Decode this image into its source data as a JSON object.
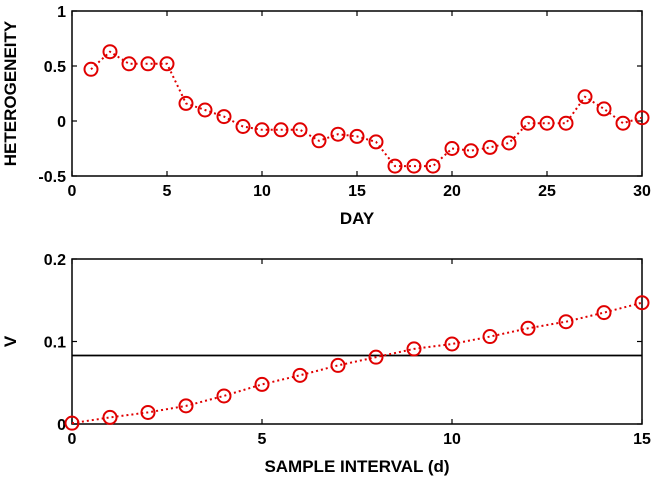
{
  "chart_data": [
    {
      "type": "line",
      "xlabel": "DAY",
      "ylabel": "HETEROGENEITY",
      "xlim": [
        0,
        30
      ],
      "ylim": [
        -0.5,
        1
      ],
      "xticks": [
        0,
        5,
        10,
        15,
        20,
        25,
        30
      ],
      "xtick_labels": [
        "0",
        "5",
        "10",
        "15",
        "20",
        "25",
        "30"
      ],
      "yticks": [
        -0.5,
        0,
        0.5,
        1
      ],
      "ytick_labels": [
        "-0.5",
        "0",
        "0.5",
        "1"
      ],
      "grid": false,
      "series": [
        {
          "color": "#e00000",
          "marker": "circle",
          "line_style": "dotted",
          "x": [
            1,
            2,
            3,
            4,
            5,
            6,
            7,
            8,
            9,
            10,
            11,
            12,
            13,
            14,
            15,
            16,
            17,
            18,
            19,
            20,
            21,
            22,
            23,
            24,
            25,
            26,
            27,
            28,
            29,
            30
          ],
          "values": [
            0.47,
            0.63,
            0.52,
            0.52,
            0.52,
            0.16,
            0.1,
            0.04,
            -0.05,
            -0.08,
            -0.08,
            -0.08,
            -0.18,
            -0.12,
            -0.14,
            -0.19,
            -0.41,
            -0.41,
            -0.41,
            -0.25,
            -0.27,
            -0.24,
            -0.2,
            -0.02,
            -0.02,
            -0.02,
            0.22,
            0.11,
            -0.02,
            0.03
          ]
        }
      ]
    },
    {
      "type": "line",
      "xlabel": "SAMPLE INTERVAL (d)",
      "ylabel": "V",
      "xlim": [
        0,
        15
      ],
      "ylim": [
        0,
        0.2
      ],
      "xticks": [
        0,
        5,
        10,
        15
      ],
      "xtick_labels": [
        "0",
        "5",
        "10",
        "15"
      ],
      "yticks": [
        0,
        0.1,
        0.2
      ],
      "ytick_labels": [
        "0",
        "0.1",
        "0.2"
      ],
      "grid": false,
      "series": [
        {
          "color": "#e00000",
          "marker": "circle",
          "line_style": "dotted",
          "x": [
            0,
            1,
            2,
            3,
            4,
            5,
            6,
            7,
            8,
            9,
            10,
            11,
            12,
            13,
            14,
            15
          ],
          "values": [
            0.001,
            0.008,
            0.014,
            0.022,
            0.034,
            0.048,
            0.059,
            0.071,
            0.081,
            0.091,
            0.097,
            0.106,
            0.116,
            0.124,
            0.135,
            0.147
          ]
        }
      ],
      "reference_lines": [
        {
          "orientation": "horizontal",
          "y": 0.083,
          "color": "#000000"
        }
      ]
    }
  ]
}
